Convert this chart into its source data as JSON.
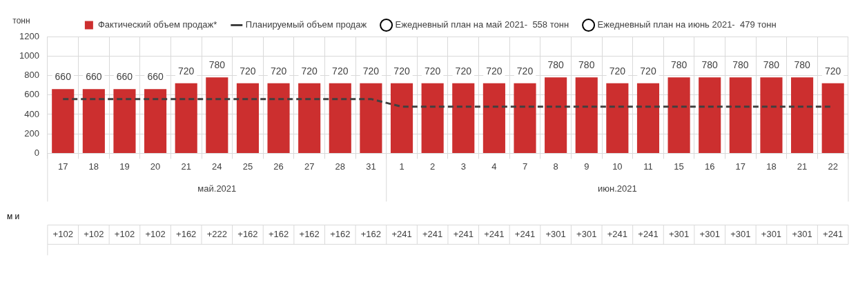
{
  "chart_data": {
    "type": "bar",
    "ylabel": "тонн",
    "categories": [
      "17",
      "18",
      "19",
      "20",
      "21",
      "24",
      "25",
      "26",
      "27",
      "28",
      "31",
      "1",
      "2",
      "3",
      "4",
      "7",
      "8",
      "9",
      "10",
      "11",
      "15",
      "16",
      "17",
      "18",
      "21",
      "22"
    ],
    "series": [
      {
        "name": "Фактический объем продаж*",
        "color": "#cc2f2f",
        "values": [
          660,
          660,
          660,
          660,
          720,
          780,
          720,
          720,
          720,
          720,
          720,
          720,
          720,
          720,
          720,
          720,
          780,
          780,
          720,
          720,
          780,
          780,
          780,
          780,
          780,
          720
        ],
        "value_labels": [
          "660",
          "660",
          "660",
          "660",
          "720",
          "780",
          "720",
          "720",
          "720",
          "720",
          "720",
          "720",
          "720",
          "720",
          "720",
          "720",
          "780",
          "780",
          "720",
          "720",
          "780",
          "780",
          "780",
          "780",
          "780",
          "720"
        ]
      },
      {
        "name": "Планируемый объем продаж",
        "type": "line",
        "color": "#404040",
        "line_style": "dashed",
        "marker": "none",
        "values": [
          558,
          558,
          558,
          558,
          558,
          558,
          558,
          558,
          558,
          558,
          558,
          479,
          479,
          479,
          479,
          479,
          479,
          479,
          479,
          479,
          479,
          479,
          479,
          479,
          479,
          479
        ]
      },
      {
        "name": "Ежедневный план на май 2021-  558 тонн",
        "type": "scatter",
        "color": "#000000",
        "marker": "circle",
        "values": [
          null,
          null,
          null,
          null,
          null,
          null,
          null,
          null,
          null,
          null,
          null,
          null,
          null,
          null,
          null,
          null,
          null,
          null,
          null,
          null,
          null,
          null,
          null,
          null,
          null,
          null
        ]
      },
      {
        "name": "Ежедневный план на июнь 2021-  479 тонн",
        "type": "scatter",
        "color": "#000000",
        "marker": "circle",
        "values": [
          null,
          null,
          null,
          null,
          null,
          null,
          null,
          null,
          null,
          null,
          null,
          null,
          null,
          null,
          null,
          null,
          null,
          null,
          null,
          null,
          null,
          null,
          null,
          null,
          null,
          null
        ]
      }
    ],
    "ylim": [
      0,
      1200
    ],
    "yticks": [
      0,
      200,
      400,
      600,
      800,
      1000,
      1200
    ],
    "grid": true,
    "legend": "top",
    "annotations": [
      "май.2021",
      "июн.2021",
      "м и",
      "+102",
      "+102",
      "+102",
      "+102",
      "+162",
      "+222",
      "+162",
      "+162",
      "+162",
      "+162",
      "+162",
      "+241",
      "+241",
      "+241",
      "+241",
      "+241",
      "+301",
      "+301",
      "+241",
      "+241",
      "+301",
      "+301",
      "+301",
      "+301",
      "+301",
      "+241"
    ]
  }
}
